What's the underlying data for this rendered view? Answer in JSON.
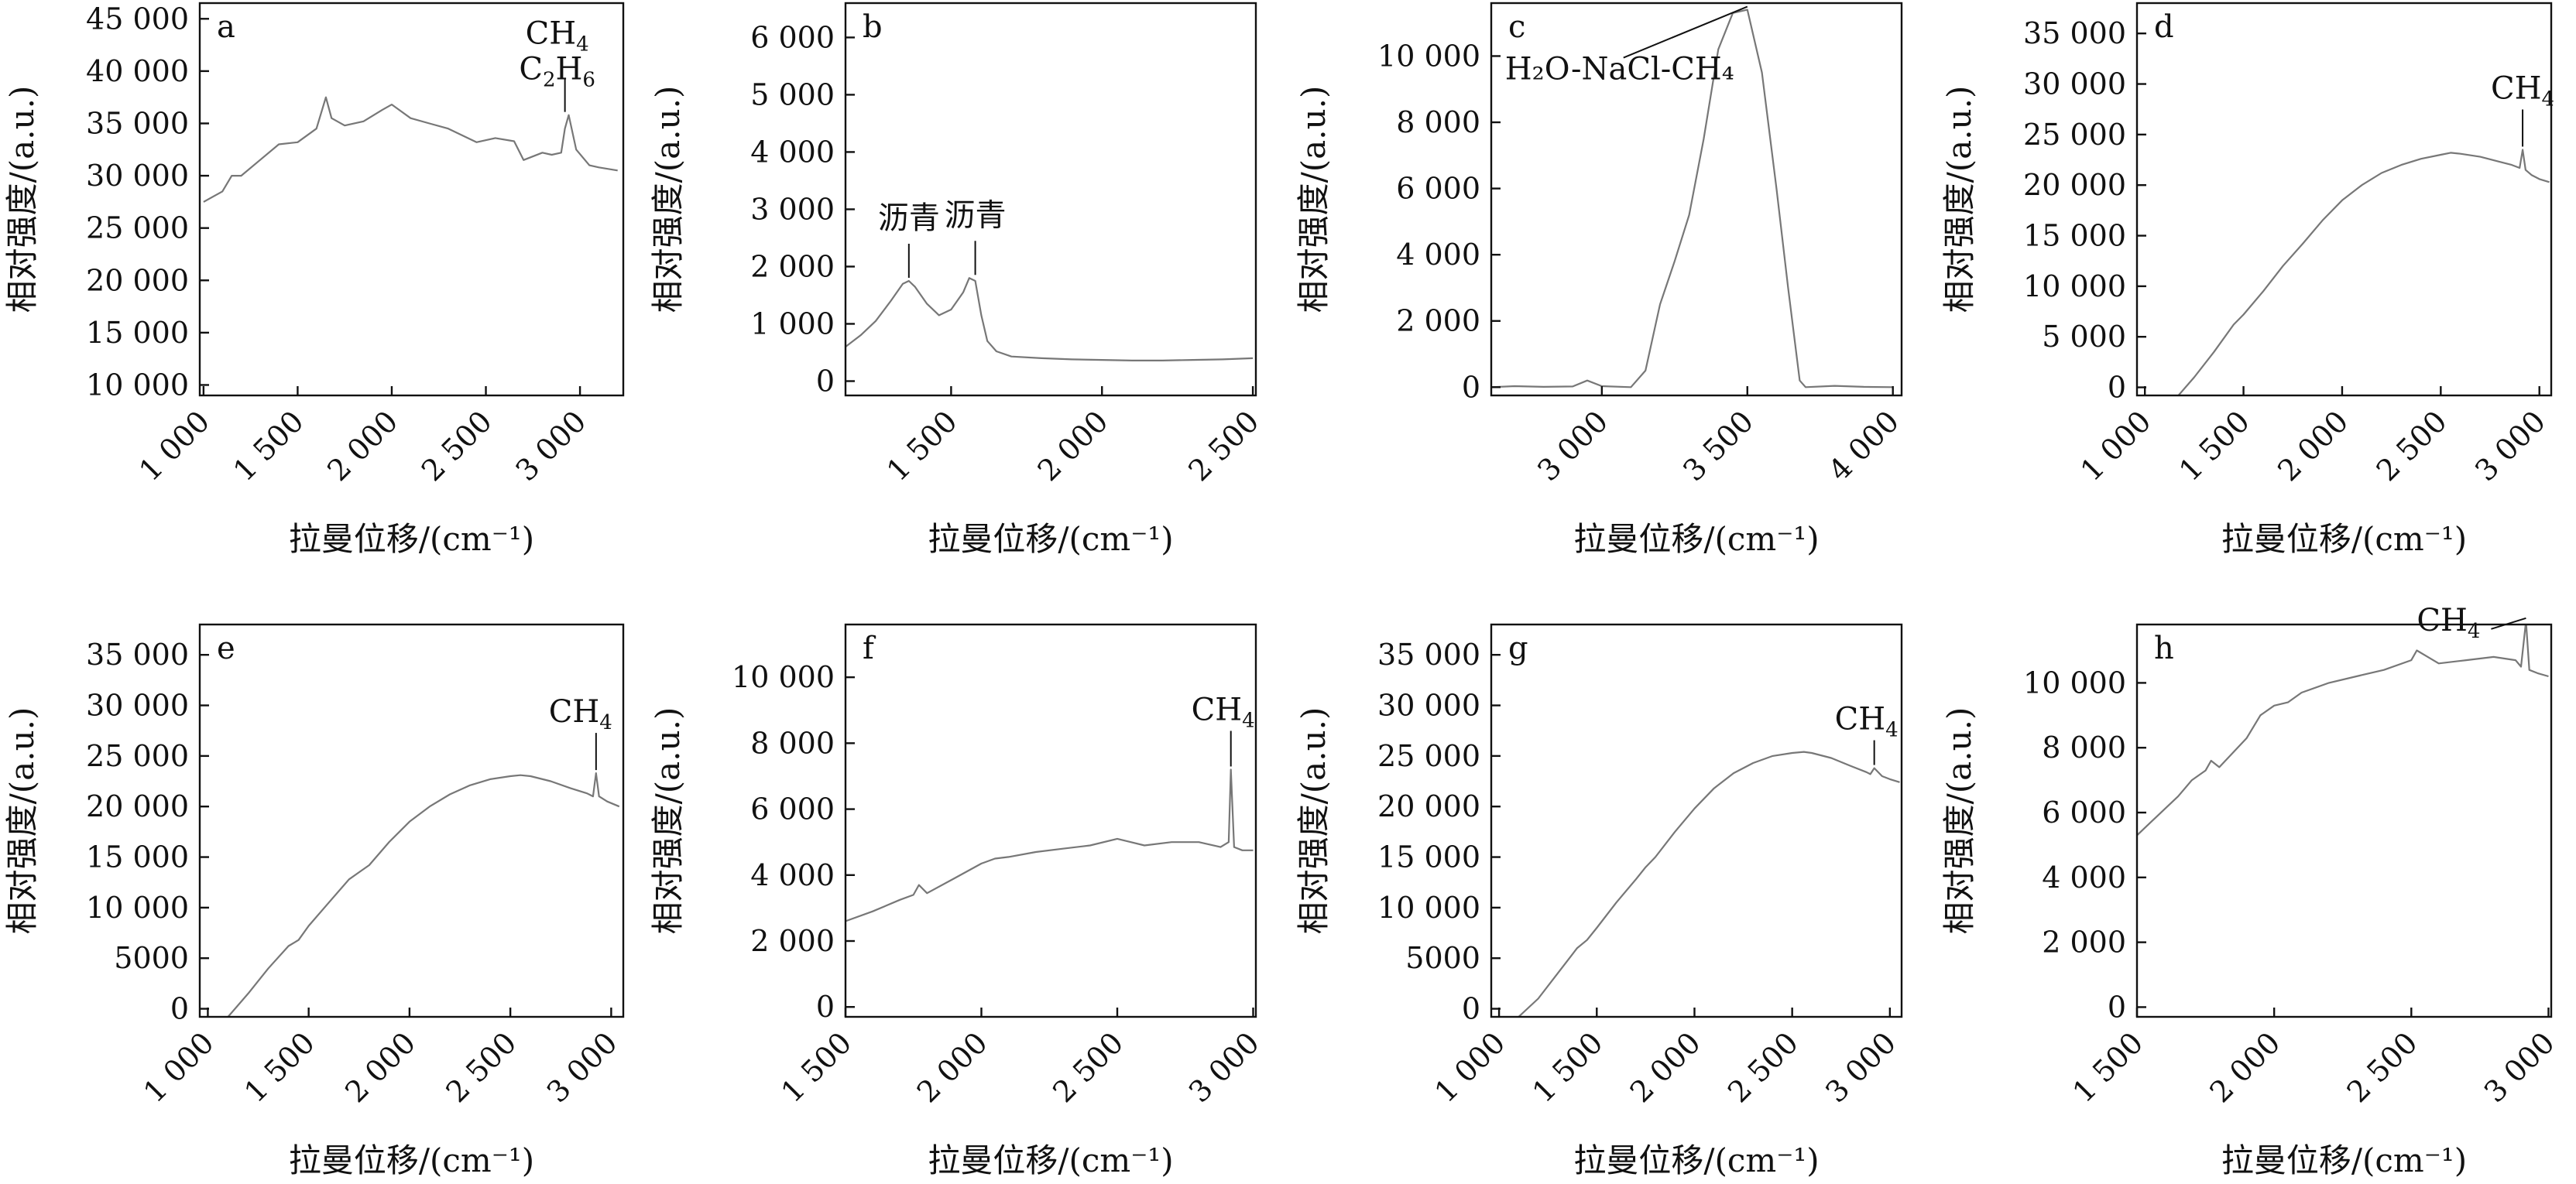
{
  "chart_data": [
    {
      "id": "a",
      "type": "line",
      "panel_label": "a",
      "xlabel": "拉曼位移/(cm⁻¹)",
      "ylabel": "相对强度/(a.u.)",
      "xlim": [
        980,
        3230
      ],
      "ylim": [
        9000,
        46500
      ],
      "xticks": [
        1000,
        1500,
        2000,
        2500,
        3000
      ],
      "xtick_labels": [
        "1 000",
        "1 500",
        "2 000",
        "2 500",
        "3 000"
      ],
      "yticks": [
        10000,
        15000,
        20000,
        25000,
        30000,
        35000,
        40000,
        45000
      ],
      "ytick_labels": [
        "10 000",
        "15 000",
        "20 000",
        "25 000",
        "30 000",
        "35 000",
        "40 000",
        "45 000"
      ],
      "series": [
        {
          "x": [
            1000,
            1100,
            1150,
            1200,
            1300,
            1400,
            1500,
            1600,
            1650,
            1680,
            1750,
            1850,
            1950,
            2000,
            2100,
            2200,
            2300,
            2450,
            2550,
            2650,
            2700,
            2800,
            2850,
            2900,
            2920,
            2940,
            2980,
            3050,
            3100,
            3200
          ],
          "y": [
            27500,
            28500,
            30000,
            30000,
            31500,
            33000,
            33200,
            34500,
            37500,
            35500,
            34800,
            35200,
            36300,
            36800,
            35500,
            35000,
            34500,
            33200,
            33600,
            33300,
            31500,
            32200,
            32000,
            32200,
            34500,
            35800,
            32500,
            31000,
            30800,
            30500
          ]
        }
      ],
      "annotations": [
        {
          "text_parts": [
            "CH",
            "4"
          ],
          "x": 2920,
          "y": 35800
        },
        {
          "text_parts": [
            "C",
            "2",
            "H",
            "6"
          ]
        }
      ]
    },
    {
      "id": "b",
      "type": "line",
      "panel_label": "b",
      "xlabel": "拉曼位移/(cm⁻¹)",
      "ylabel": "相对强度/(a.u.)",
      "xlim": [
        1150,
        2510
      ],
      "ylim": [
        -250,
        6600
      ],
      "xticks": [
        1500,
        2000,
        2500
      ],
      "xtick_labels": [
        "1 500",
        "2 000",
        "2 500"
      ],
      "yticks": [
        0,
        1000,
        2000,
        3000,
        4000,
        5000,
        6000
      ],
      "ytick_labels": [
        "0",
        "1 000",
        "2 000",
        "3 000",
        "4 000",
        "5 000",
        "6 000"
      ],
      "series": [
        {
          "x": [
            1150,
            1200,
            1250,
            1300,
            1340,
            1360,
            1380,
            1420,
            1460,
            1500,
            1540,
            1560,
            1580,
            1600,
            1620,
            1650,
            1700,
            1800,
            1900,
            2000,
            2100,
            2200,
            2300,
            2400,
            2500
          ],
          "y": [
            600,
            800,
            1050,
            1400,
            1700,
            1750,
            1650,
            1350,
            1150,
            1250,
            1550,
            1800,
            1750,
            1150,
            700,
            520,
            430,
            400,
            380,
            370,
            360,
            360,
            370,
            380,
            400
          ]
        }
      ],
      "annotations": [
        {
          "text": "沥青",
          "x": 1360,
          "y": 1750
        },
        {
          "text": "沥青",
          "x": 1580,
          "y": 1800
        }
      ]
    },
    {
      "id": "c",
      "type": "line",
      "panel_label": "c",
      "xlabel": "拉曼位移/(cm⁻¹)",
      "ylabel": "相对强度/(a.u.)",
      "xlim": [
        2620,
        4030
      ],
      "ylim": [
        -250,
        11600
      ],
      "xticks": [
        3000,
        3500,
        4000
      ],
      "xtick_labels": [
        "3 000",
        "3 500",
        "4 000"
      ],
      "yticks": [
        0,
        2000,
        4000,
        6000,
        8000,
        10000
      ],
      "ytick_labels": [
        "0",
        "2 000",
        "4 000",
        "6 000",
        "8 000",
        "10 000"
      ],
      "series": [
        {
          "x": [
            2620,
            2700,
            2800,
            2900,
            2950,
            3000,
            3100,
            3150,
            3200,
            3250,
            3300,
            3350,
            3400,
            3450,
            3500,
            3550,
            3600,
            3640,
            3680,
            3700,
            3800,
            3900,
            4000
          ],
          "y": [
            0,
            30,
            10,
            20,
            200,
            30,
            0,
            500,
            2500,
            3800,
            5200,
            7500,
            10200,
            11300,
            11400,
            9500,
            6000,
            3000,
            200,
            0,
            40,
            10,
            0
          ]
        }
      ],
      "annotations": [
        {
          "text": "H₂O-NaCl-CH₄",
          "x": 3500,
          "y": 11400
        }
      ]
    },
    {
      "id": "d",
      "type": "line",
      "panel_label": "d",
      "xlabel": "拉曼位移/(cm⁻¹)",
      "ylabel": "相对强度/(a.u.)",
      "xlim": [
        960,
        3060
      ],
      "ylim": [
        -800,
        38000
      ],
      "xticks": [
        1000,
        1500,
        2000,
        2500,
        3000
      ],
      "xtick_labels": [
        "1 000",
        "1 500",
        "2 000",
        "2 500",
        "3 000"
      ],
      "yticks": [
        0,
        5000,
        10000,
        15000,
        20000,
        25000,
        30000,
        35000
      ],
      "ytick_labels": [
        "0",
        "5 000",
        "10 000",
        "15 000",
        "20 000",
        "25 000",
        "30 000",
        "35 000"
      ],
      "series": [
        {
          "x": [
            1170,
            1250,
            1350,
            1450,
            1500,
            1600,
            1700,
            1800,
            1900,
            2000,
            2100,
            2200,
            2300,
            2400,
            2500,
            2550,
            2600,
            2700,
            2800,
            2860,
            2900,
            2915,
            2930,
            2960,
            3000,
            3050
          ],
          "y": [
            -800,
            1000,
            3500,
            6200,
            7200,
            9500,
            12000,
            14200,
            16500,
            18500,
            20000,
            21200,
            22000,
            22600,
            23000,
            23200,
            23100,
            22800,
            22300,
            22000,
            21700,
            23500,
            21500,
            21000,
            20600,
            20300
          ]
        }
      ],
      "annotations": [
        {
          "text_parts": [
            "CH",
            "4"
          ],
          "x": 2915,
          "y": 23500
        }
      ]
    },
    {
      "id": "e",
      "type": "line",
      "panel_label": "e",
      "xlabel": "拉曼位移/(cm⁻¹)",
      "ylabel": "相对强度/(a.u.)",
      "xlim": [
        960,
        3060
      ],
      "ylim": [
        -800,
        38000
      ],
      "xticks": [
        1000,
        1500,
        2000,
        2500,
        3000
      ],
      "xtick_labels": [
        "1 000",
        "1 500",
        "2 000",
        "2 500",
        "3 000"
      ],
      "yticks": [
        0,
        5000,
        10000,
        15000,
        20000,
        25000,
        30000,
        35000
      ],
      "ytick_labels": [
        "0",
        "5000",
        "10 000",
        "15 000",
        "20 000",
        "25 000",
        "30 000",
        "35 000"
      ],
      "series": [
        {
          "x": [
            1100,
            1200,
            1300,
            1400,
            1450,
            1500,
            1600,
            1700,
            1750,
            1800,
            1900,
            2000,
            2100,
            2200,
            2300,
            2400,
            2500,
            2550,
            2600,
            2700,
            2800,
            2880,
            2910,
            2925,
            2940,
            2980,
            3040
          ],
          "y": [
            -800,
            1500,
            4000,
            6200,
            6800,
            8200,
            10500,
            12800,
            13500,
            14200,
            16500,
            18500,
            20000,
            21200,
            22100,
            22700,
            23000,
            23100,
            23000,
            22500,
            21800,
            21300,
            21000,
            23300,
            21000,
            20500,
            20000
          ]
        }
      ],
      "annotations": [
        {
          "text_parts": [
            "CH",
            "4"
          ],
          "x": 2925,
          "y": 23300
        }
      ]
    },
    {
      "id": "f",
      "type": "line",
      "panel_label": "f",
      "xlabel": "拉曼位移/(cm⁻¹)",
      "ylabel": "相对强度/(a.u.)",
      "xlim": [
        1500,
        3010
      ],
      "ylim": [
        -300,
        11600
      ],
      "xticks": [
        1500,
        2000,
        2500,
        3000
      ],
      "xtick_labels": [
        "1 500",
        "2 000",
        "2 500",
        "3 000"
      ],
      "yticks": [
        0,
        2000,
        4000,
        6000,
        8000,
        10000
      ],
      "ytick_labels": [
        "0",
        "2 000",
        "4 000",
        "6 000",
        "8 000",
        "10 000"
      ],
      "series": [
        {
          "x": [
            1500,
            1600,
            1700,
            1750,
            1770,
            1800,
            1900,
            2000,
            2050,
            2100,
            2200,
            2300,
            2400,
            2500,
            2550,
            2600,
            2700,
            2800,
            2880,
            2910,
            2918,
            2930,
            2960,
            3000
          ],
          "y": [
            2600,
            2900,
            3250,
            3400,
            3700,
            3450,
            3900,
            4350,
            4500,
            4550,
            4700,
            4800,
            4900,
            5100,
            5000,
            4900,
            5000,
            5000,
            4850,
            5000,
            7200,
            4850,
            4750,
            4750
          ]
        }
      ],
      "annotations": [
        {
          "text_parts": [
            "CH",
            "4"
          ],
          "x": 2918,
          "y": 7200
        }
      ]
    },
    {
      "id": "g",
      "type": "line",
      "panel_label": "g",
      "xlabel": "拉曼位移/(cm⁻¹)",
      "ylabel": "相对强度/(a.u.)",
      "xlim": [
        960,
        3060
      ],
      "ylim": [
        -800,
        38000
      ],
      "xticks": [
        1000,
        1500,
        2000,
        2500,
        3000
      ],
      "xtick_labels": [
        "1 000",
        "1 500",
        "2 000",
        "2 500",
        "3 000"
      ],
      "yticks": [
        0,
        5000,
        10000,
        15000,
        20000,
        25000,
        30000,
        35000
      ],
      "ytick_labels": [
        "0",
        "5000",
        "10 000",
        "15 000",
        "20 000",
        "25 000",
        "30 000",
        "35 000"
      ],
      "series": [
        {
          "x": [
            1100,
            1200,
            1300,
            1400,
            1450,
            1500,
            1600,
            1700,
            1750,
            1800,
            1900,
            2000,
            2100,
            2200,
            2300,
            2400,
            2500,
            2560,
            2600,
            2700,
            2800,
            2880,
            2900,
            2920,
            2960,
            3000,
            3050
          ],
          "y": [
            -800,
            1000,
            3500,
            6000,
            6800,
            8000,
            10500,
            12800,
            14000,
            15000,
            17500,
            19800,
            21800,
            23300,
            24300,
            25000,
            25300,
            25400,
            25300,
            24800,
            24000,
            23400,
            23200,
            23800,
            23000,
            22700,
            22400
          ]
        }
      ],
      "annotations": [
        {
          "text_parts": [
            "CH",
            "4"
          ],
          "x": 2920,
          "y": 23800
        }
      ]
    },
    {
      "id": "h",
      "type": "line",
      "panel_label": "h",
      "xlabel": "拉曼位移/(cm⁻¹)",
      "ylabel": "相对强度/(a.u.)",
      "xlim": [
        1500,
        3010
      ],
      "ylim": [
        -300,
        11800
      ],
      "xticks": [
        1500,
        2000,
        2500,
        3000
      ],
      "xtick_labels": [
        "1 500",
        "2 000",
        "2 500",
        "3 000"
      ],
      "yticks": [
        0,
        2000,
        4000,
        6000,
        8000,
        10000
      ],
      "ytick_labels": [
        "0",
        "2 000",
        "4 000",
        "6 000",
        "8 000",
        "10 000"
      ],
      "series": [
        {
          "x": [
            1500,
            1550,
            1600,
            1650,
            1700,
            1750,
            1770,
            1800,
            1900,
            1950,
            2000,
            2050,
            2100,
            2200,
            2300,
            2400,
            2500,
            2520,
            2560,
            2600,
            2700,
            2800,
            2880,
            2900,
            2918,
            2930,
            2960,
            3000
          ],
          "y": [
            5300,
            5700,
            6100,
            6500,
            7000,
            7300,
            7600,
            7400,
            8300,
            9000,
            9300,
            9400,
            9700,
            10000,
            10200,
            10400,
            10700,
            11000,
            10800,
            10600,
            10700,
            10800,
            10700,
            10500,
            11900,
            10400,
            10300,
            10200
          ]
        }
      ],
      "annotations": [
        {
          "text_parts": [
            "CH",
            "4"
          ],
          "x": 2918,
          "y": 11900
        }
      ]
    }
  ]
}
